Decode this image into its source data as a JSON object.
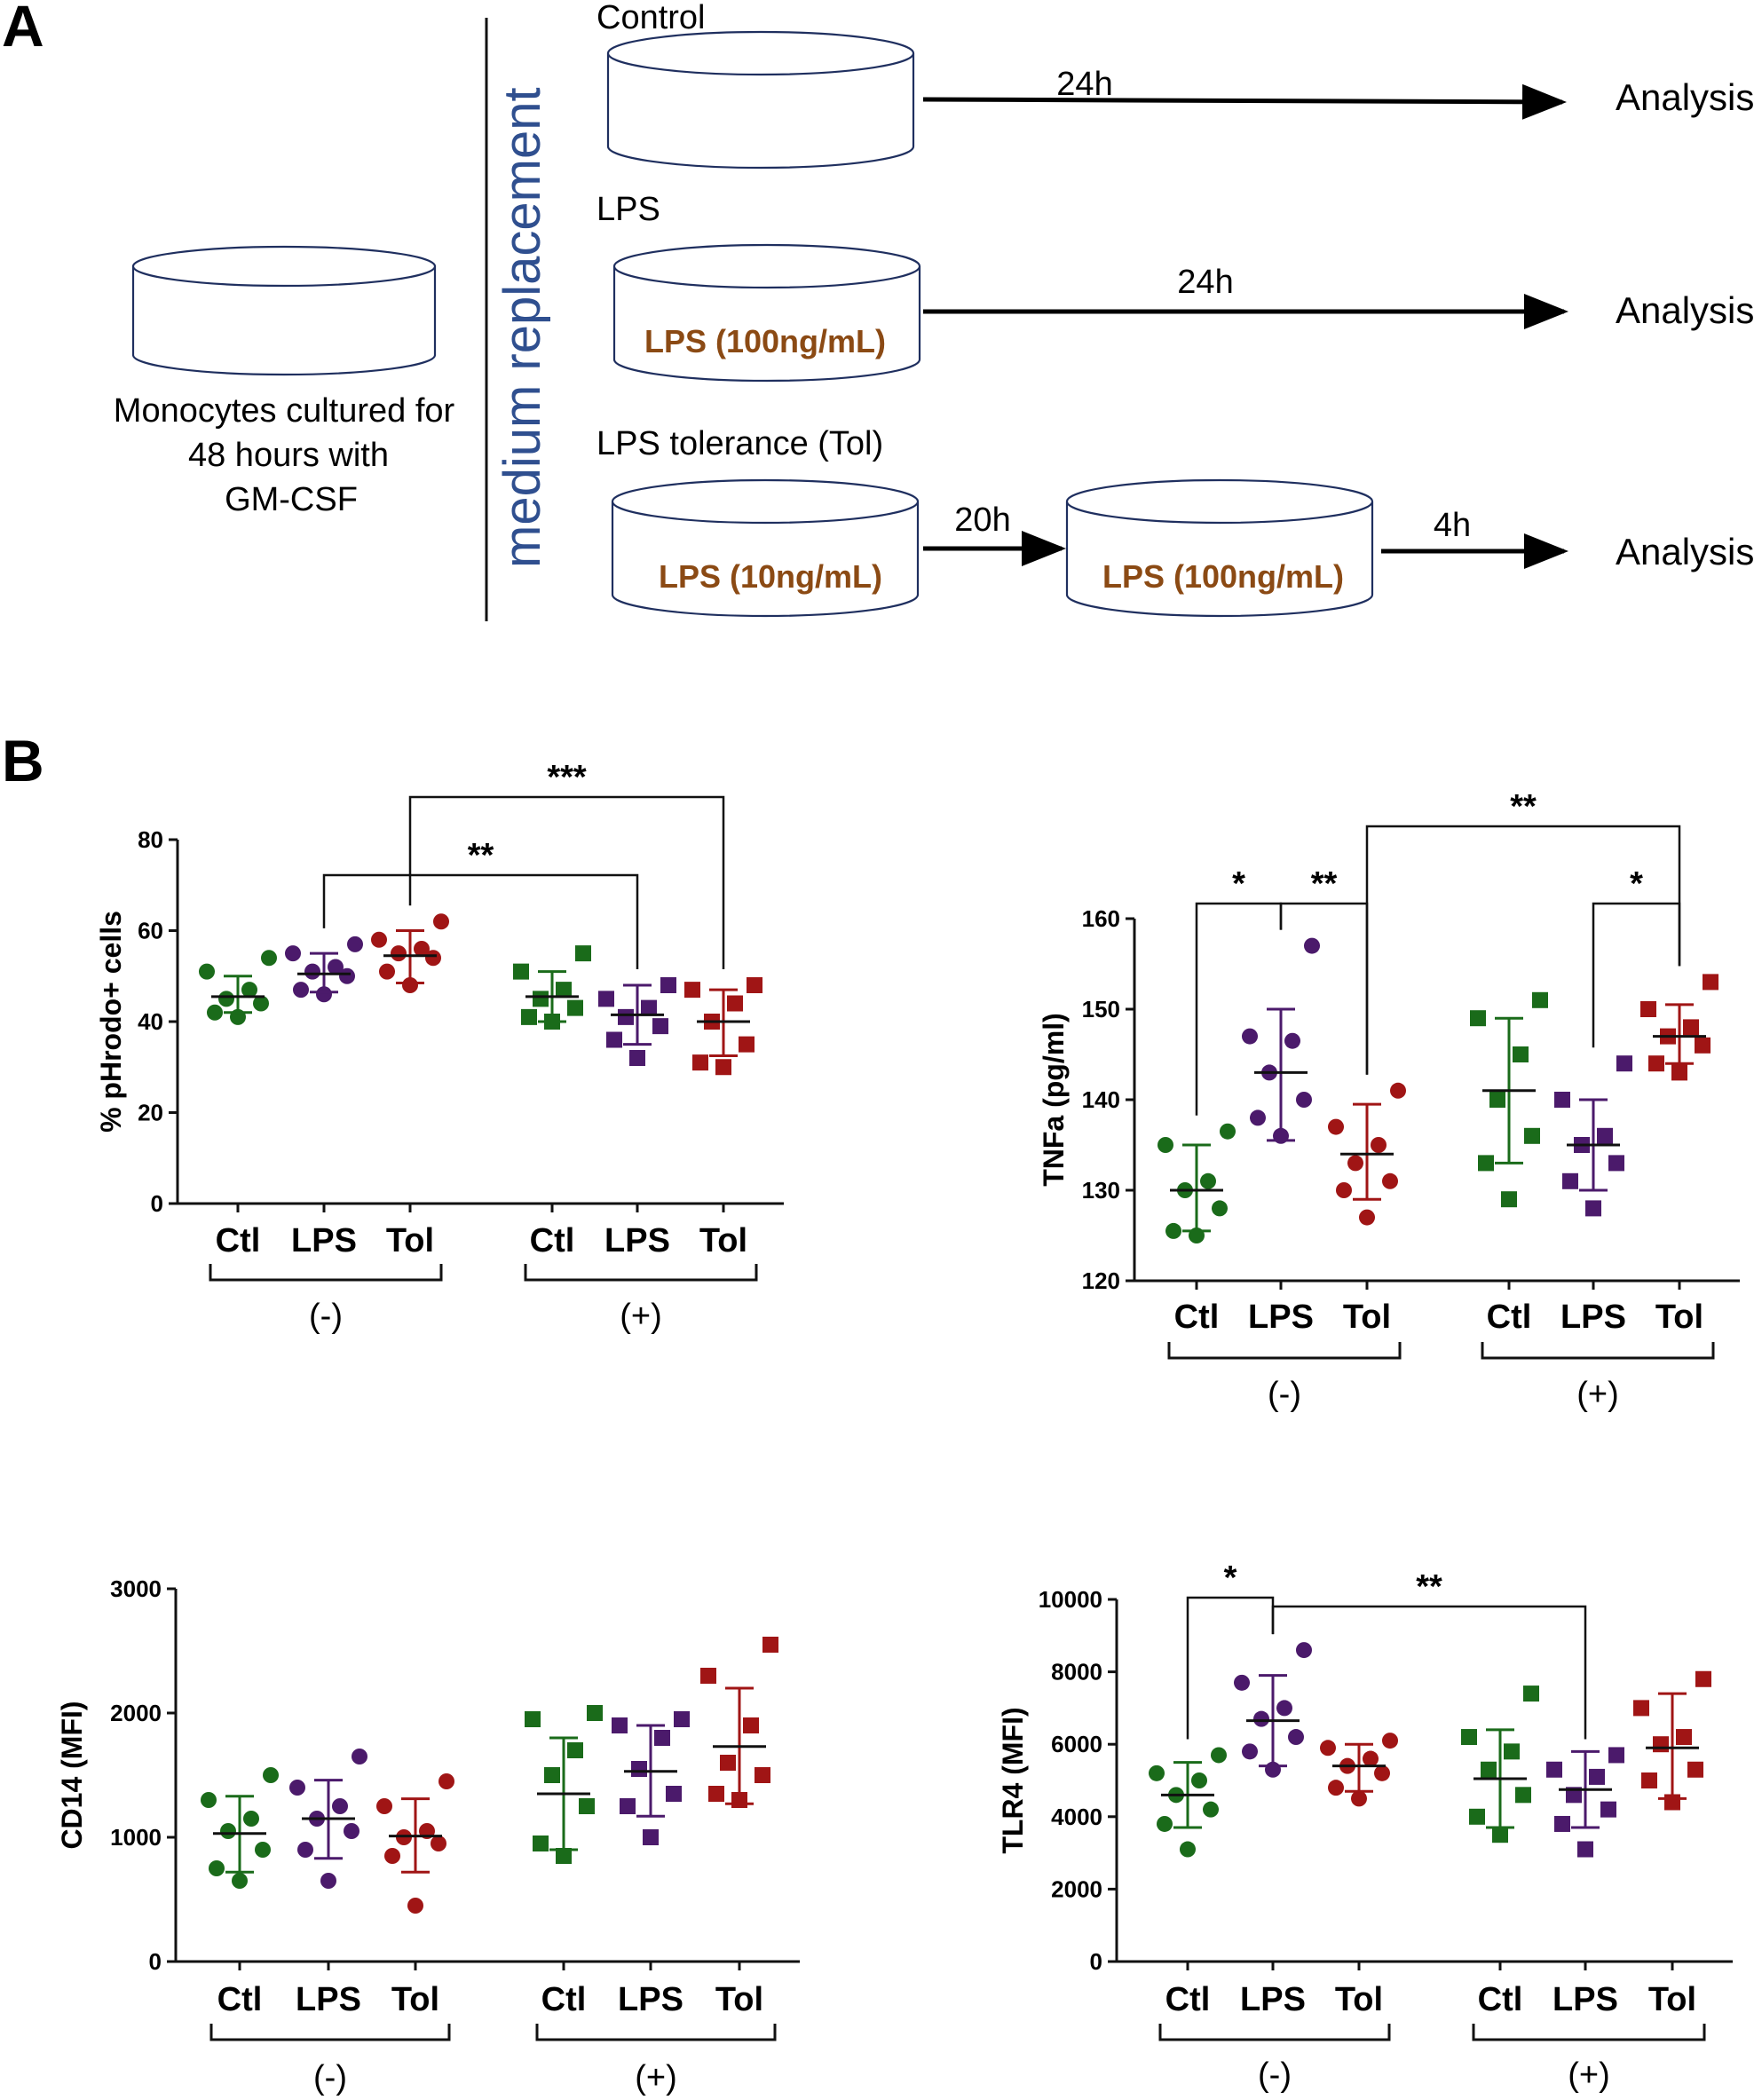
{
  "panel_a": {
    "letter": "A",
    "left_dish_caption": [
      "Monocytes cultured for",
      "48 hours with",
      "GM-CSF"
    ],
    "divider_label": "medium replacement",
    "rows": [
      {
        "condition": "Control",
        "dish_label": "",
        "time": "24h",
        "endpoint": "Analysis"
      },
      {
        "condition": "LPS",
        "dish_label": "LPS (100ng/mL)",
        "time": "24h",
        "endpoint": "Analysis"
      },
      {
        "condition": "LPS tolerance (Tol)",
        "dish_label": "LPS (10ng/mL)",
        "time": "20h",
        "second_dish_label": "LPS (100ng/mL)",
        "second_time": "4h",
        "endpoint": "Analysis"
      }
    ]
  },
  "panel_b": {
    "letter": "B"
  },
  "colors": {
    "ctl": "#1a6b1a",
    "lps": "#4b1a6b",
    "tol": "#a01515",
    "diagram_text": "#2f4f8f",
    "dose_text": "#8b4a14"
  },
  "chart_data": [
    {
      "type": "scatter",
      "title": "",
      "ylabel": "% pHrodo+ cells",
      "ylim": [
        0,
        80
      ],
      "yticks": [
        0,
        20,
        40,
        60,
        80
      ],
      "categories": [
        "Ctl",
        "LPS",
        "Tol",
        "Ctl",
        "LPS",
        "Tol"
      ],
      "groups": [
        "(-)",
        "(+)"
      ],
      "series": [
        {
          "name": "Ctl",
          "group": "(-)",
          "marker": "circle",
          "color": "ctl",
          "points": [
            41,
            42,
            44,
            45,
            47,
            51,
            54
          ],
          "mean": 45.5,
          "sd_low": 42,
          "sd_high": 50
        },
        {
          "name": "LPS",
          "group": "(-)",
          "marker": "circle",
          "color": "lps",
          "points": [
            46,
            47,
            50,
            51,
            52,
            55,
            57
          ],
          "mean": 50.5,
          "sd_low": 46.5,
          "sd_high": 55
        },
        {
          "name": "Tol",
          "group": "(-)",
          "marker": "circle",
          "color": "tol",
          "points": [
            48,
            51,
            54,
            55,
            56,
            58,
            62
          ],
          "mean": 54.5,
          "sd_low": 48.5,
          "sd_high": 60
        },
        {
          "name": "Ctl",
          "group": "(+)",
          "marker": "square",
          "color": "ctl",
          "points": [
            40,
            41,
            43,
            45,
            47,
            51,
            55
          ],
          "mean": 45.5,
          "sd_low": 40,
          "sd_high": 51
        },
        {
          "name": "LPS",
          "group": "(+)",
          "marker": "square",
          "color": "lps",
          "points": [
            32,
            36,
            39,
            41,
            43,
            45,
            48
          ],
          "mean": 41.5,
          "sd_low": 35,
          "sd_high": 48
        },
        {
          "name": "Tol",
          "group": "(+)",
          "marker": "square",
          "color": "tol",
          "points": [
            30,
            31,
            35,
            40,
            44,
            47,
            48
          ],
          "mean": 40,
          "sd_low": 32.5,
          "sd_high": 47
        }
      ],
      "significance": [
        {
          "from": 1,
          "to": 4,
          "label": "**"
        },
        {
          "from": 2,
          "to": 5,
          "label": "***"
        }
      ]
    },
    {
      "type": "scatter",
      "title": "",
      "ylabel": "TNFa (pg/ml)",
      "ylim": [
        120,
        160
      ],
      "yticks": [
        120,
        130,
        140,
        150,
        160
      ],
      "categories": [
        "Ctl",
        "LPS",
        "Tol",
        "Ctl",
        "LPS",
        "Tol"
      ],
      "groups": [
        "(-)",
        "(+)"
      ],
      "series": [
        {
          "name": "Ctl",
          "group": "(-)",
          "marker": "circle",
          "color": "ctl",
          "points": [
            125,
            125.5,
            128,
            130,
            131,
            135,
            136.5
          ],
          "mean": 130,
          "sd_low": 125.5,
          "sd_high": 135
        },
        {
          "name": "LPS",
          "group": "(-)",
          "marker": "circle",
          "color": "lps",
          "points": [
            136,
            138,
            140,
            143,
            146.5,
            147,
            157
          ],
          "mean": 143,
          "sd_low": 135.5,
          "sd_high": 150
        },
        {
          "name": "Tol",
          "group": "(-)",
          "marker": "circle",
          "color": "tol",
          "points": [
            127,
            130,
            131,
            133,
            135,
            137,
            141
          ],
          "mean": 134,
          "sd_low": 129,
          "sd_high": 139.5
        },
        {
          "name": "Ctl",
          "group": "(+)",
          "marker": "square",
          "color": "ctl",
          "points": [
            129,
            133,
            136,
            140,
            145,
            149,
            151
          ],
          "mean": 141,
          "sd_low": 133,
          "sd_high": 149
        },
        {
          "name": "LPS",
          "group": "(+)",
          "marker": "square",
          "color": "lps",
          "points": [
            128,
            131,
            133,
            135,
            136,
            140,
            144
          ],
          "mean": 135,
          "sd_low": 130,
          "sd_high": 140
        },
        {
          "name": "Tol",
          "group": "(+)",
          "marker": "square",
          "color": "tol",
          "points": [
            143,
            144,
            146,
            147,
            148,
            150,
            153
          ],
          "mean": 147,
          "sd_low": 144,
          "sd_high": 150.5
        }
      ],
      "significance": [
        {
          "from": 0,
          "to": 1,
          "label": "*"
        },
        {
          "from": 1,
          "to": 2,
          "label": "**"
        },
        {
          "from": 4,
          "to": 5,
          "label": "*"
        },
        {
          "from": 2,
          "to": 5,
          "label": "**"
        }
      ]
    },
    {
      "type": "scatter",
      "title": "",
      "ylabel": "CD14 (MFI)",
      "ylim": [
        0,
        3000
      ],
      "yticks": [
        0,
        1000,
        2000,
        3000
      ],
      "categories": [
        "Ctl",
        "LPS",
        "Tol",
        "Ctl",
        "LPS",
        "Tol"
      ],
      "groups": [
        "(-)",
        "(+)"
      ],
      "series": [
        {
          "name": "Ctl",
          "group": "(-)",
          "marker": "circle",
          "color": "ctl",
          "points": [
            650,
            750,
            900,
            1050,
            1150,
            1300,
            1500
          ],
          "mean": 1030,
          "sd_low": 720,
          "sd_high": 1330
        },
        {
          "name": "LPS",
          "group": "(-)",
          "marker": "circle",
          "color": "lps",
          "points": [
            650,
            900,
            1050,
            1150,
            1250,
            1400,
            1650
          ],
          "mean": 1150,
          "sd_low": 830,
          "sd_high": 1460
        },
        {
          "name": "Tol",
          "group": "(-)",
          "marker": "circle",
          "color": "tol",
          "points": [
            450,
            850,
            950,
            1000,
            1050,
            1250,
            1450
          ],
          "mean": 1010,
          "sd_low": 720,
          "sd_high": 1310
        },
        {
          "name": "Ctl",
          "group": "(+)",
          "marker": "square",
          "color": "ctl",
          "points": [
            850,
            950,
            1250,
            1500,
            1700,
            1950,
            2000
          ],
          "mean": 1350,
          "sd_low": 900,
          "sd_high": 1800
        },
        {
          "name": "LPS",
          "group": "(+)",
          "marker": "square",
          "color": "lps",
          "points": [
            1000,
            1250,
            1350,
            1550,
            1800,
            1900,
            1950
          ],
          "mean": 1530,
          "sd_low": 1170,
          "sd_high": 1900
        },
        {
          "name": "Tol",
          "group": "(+)",
          "marker": "square",
          "color": "tol",
          "points": [
            1300,
            1350,
            1500,
            1600,
            1900,
            2300,
            2550
          ],
          "mean": 1730,
          "sd_low": 1270,
          "sd_high": 2200
        }
      ],
      "significance": []
    },
    {
      "type": "scatter",
      "title": "",
      "ylabel": "TLR4 (MFI)",
      "ylim": [
        0,
        10000
      ],
      "yticks": [
        0,
        2000,
        4000,
        6000,
        8000,
        10000
      ],
      "categories": [
        "Ctl",
        "LPS",
        "Tol",
        "Ctl",
        "LPS",
        "Tol"
      ],
      "groups": [
        "(-)",
        "(+)"
      ],
      "series": [
        {
          "name": "Ctl",
          "group": "(-)",
          "marker": "circle",
          "color": "ctl",
          "points": [
            3100,
            3800,
            4200,
            4600,
            5000,
            5200,
            5700
          ],
          "mean": 4600,
          "sd_low": 3700,
          "sd_high": 5500
        },
        {
          "name": "LPS",
          "group": "(-)",
          "marker": "circle",
          "color": "lps",
          "points": [
            5300,
            5800,
            6200,
            6700,
            7000,
            7700,
            8600
          ],
          "mean": 6650,
          "sd_low": 5400,
          "sd_high": 7900
        },
        {
          "name": "Tol",
          "group": "(-)",
          "marker": "circle",
          "color": "tol",
          "points": [
            4500,
            4800,
            5200,
            5400,
            5600,
            5900,
            6100
          ],
          "mean": 5400,
          "sd_low": 4700,
          "sd_high": 6000
        },
        {
          "name": "Ctl",
          "group": "(+)",
          "marker": "square",
          "color": "ctl",
          "points": [
            3500,
            4000,
            4600,
            5300,
            5800,
            6200,
            7400
          ],
          "mean": 5050,
          "sd_low": 3700,
          "sd_high": 6400
        },
        {
          "name": "LPS",
          "group": "(+)",
          "marker": "square",
          "color": "lps",
          "points": [
            3100,
            3800,
            4200,
            4600,
            5100,
            5300,
            5700
          ],
          "mean": 4750,
          "sd_low": 3700,
          "sd_high": 5800
        },
        {
          "name": "Tol",
          "group": "(+)",
          "marker": "square",
          "color": "tol",
          "points": [
            4400,
            5000,
            5300,
            6000,
            6200,
            7000,
            7800
          ],
          "mean": 5900,
          "sd_low": 4500,
          "sd_high": 7400
        }
      ],
      "significance": [
        {
          "from": 0,
          "to": 1,
          "label": "*"
        },
        {
          "from": 1,
          "to": 4,
          "label": "**"
        }
      ]
    }
  ]
}
